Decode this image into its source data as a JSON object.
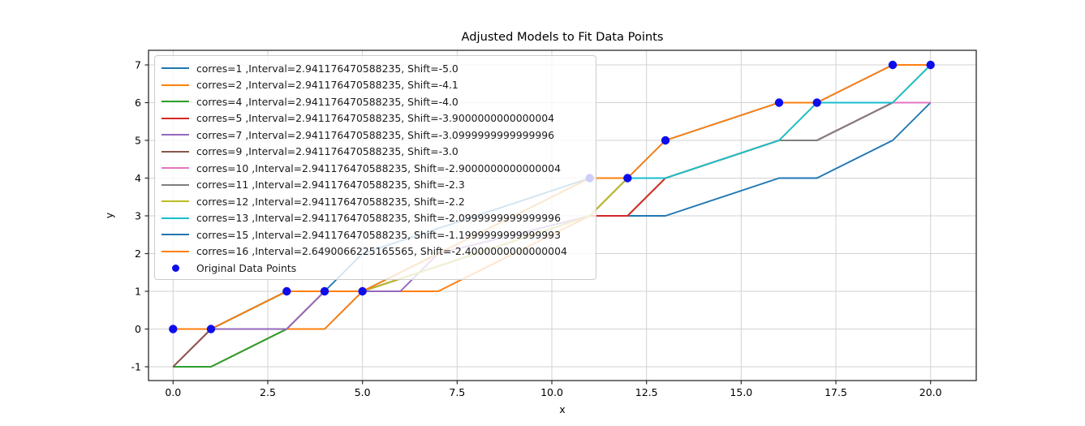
{
  "title": "Adjusted Models to Fit Data Points",
  "chart_data": {
    "type": "line",
    "title": "Adjusted Models to Fit Data Points",
    "xlabel": "x",
    "ylabel": "y",
    "xlim": [
      -0.65,
      21.2
    ],
    "ylim": [
      -1.37,
      7.4
    ],
    "grid": true,
    "legend_position": "upper left",
    "x_ticks": [
      {
        "value": 0,
        "label": "0.0"
      },
      {
        "value": 2.5,
        "label": "2.5"
      },
      {
        "value": 5,
        "label": "5.0"
      },
      {
        "value": 7.5,
        "label": "7.5"
      },
      {
        "value": 10,
        "label": "10.0"
      },
      {
        "value": 12.5,
        "label": "12.5"
      },
      {
        "value": 15,
        "label": "15.0"
      },
      {
        "value": 17.5,
        "label": "17.5"
      },
      {
        "value": 20,
        "label": "20.0"
      }
    ],
    "y_ticks": [
      {
        "value": -1,
        "label": "-1"
      },
      {
        "value": 0,
        "label": "0"
      },
      {
        "value": 1,
        "label": "1"
      },
      {
        "value": 2,
        "label": "2"
      },
      {
        "value": 3,
        "label": "3"
      },
      {
        "value": 4,
        "label": "4"
      },
      {
        "value": 5,
        "label": "5"
      },
      {
        "value": 6,
        "label": "6"
      },
      {
        "value": 7,
        "label": "7"
      }
    ],
    "series": [
      {
        "corres": "1",
        "color": "#1f77b4",
        "label": "corres=1 ,Interval=2.941176470588235, Shift=-5.0",
        "points": [
          [
            0,
            -1
          ],
          [
            1,
            -1
          ],
          [
            3,
            0
          ],
          [
            4,
            0
          ],
          [
            5,
            1
          ],
          [
            11,
            3
          ],
          [
            12,
            3
          ],
          [
            13,
            3
          ],
          [
            16,
            4
          ],
          [
            17,
            4
          ],
          [
            19,
            5
          ],
          [
            20,
            6
          ]
        ]
      },
      {
        "corres": "2",
        "color": "#ff7f0e",
        "label": "corres=2 ,Interval=2.941176470588235, Shift=-4.1",
        "points": [
          [
            0,
            -1
          ],
          [
            1,
            -1
          ],
          [
            3,
            0
          ],
          [
            4,
            0
          ],
          [
            5,
            1
          ],
          [
            7,
            1
          ],
          [
            9,
            2
          ],
          [
            11,
            3
          ],
          [
            12,
            3
          ],
          [
            13,
            4
          ],
          [
            16,
            5
          ],
          [
            17,
            5
          ],
          [
            19,
            6
          ],
          [
            20,
            6
          ]
        ]
      },
      {
        "corres": "4",
        "color": "#2ca02c",
        "label": "corres=4 ,Interval=2.941176470588235, Shift=-4.0",
        "points": [
          [
            0,
            -1
          ],
          [
            1,
            -1
          ],
          [
            3,
            0
          ],
          [
            4,
            1
          ],
          [
            5,
            1
          ],
          [
            11,
            3
          ],
          [
            12,
            3
          ],
          [
            13,
            4
          ],
          [
            16,
            5
          ],
          [
            17,
            5
          ],
          [
            19,
            6
          ],
          [
            20,
            6
          ]
        ]
      },
      {
        "corres": "5",
        "color": "#d62728",
        "label": "corres=5 ,Interval=2.941176470588235, Shift=-3.9000000000000004",
        "points": [
          [
            0,
            -1
          ],
          [
            1,
            0
          ],
          [
            3,
            0
          ],
          [
            4,
            1
          ],
          [
            5,
            1
          ],
          [
            11,
            3
          ],
          [
            12,
            3
          ],
          [
            13,
            4
          ],
          [
            16,
            5
          ],
          [
            17,
            5
          ],
          [
            19,
            6
          ],
          [
            20,
            6
          ]
        ]
      },
      {
        "corres": "7",
        "color": "#9467bd",
        "label": "corres=7 ,Interval=2.941176470588235, Shift=-3.0999999999999996",
        "points": [
          [
            0,
            -1
          ],
          [
            1,
            0
          ],
          [
            3,
            0
          ],
          [
            4,
            1
          ],
          [
            5,
            1
          ],
          [
            6,
            1
          ],
          [
            7,
            2
          ],
          [
            11,
            3
          ],
          [
            12,
            4
          ],
          [
            13,
            4
          ],
          [
            16,
            5
          ],
          [
            17,
            5
          ],
          [
            19,
            6
          ],
          [
            20,
            6
          ]
        ]
      },
      {
        "corres": "9",
        "color": "#8c564b",
        "label": "corres=9 ,Interval=2.941176470588235, Shift=-3.0",
        "points": [
          [
            0,
            -1
          ],
          [
            1,
            0
          ],
          [
            3,
            1
          ],
          [
            4,
            1
          ],
          [
            5,
            1
          ],
          [
            11,
            3
          ],
          [
            12,
            4
          ],
          [
            13,
            4
          ],
          [
            16,
            5
          ],
          [
            17,
            5
          ],
          [
            19,
            6
          ],
          [
            20,
            6
          ]
        ]
      },
      {
        "corres": "10",
        "color": "#e377c2",
        "label": "corres=10 ,Interval=2.941176470588235, Shift=-2.9000000000000004",
        "points": [
          [
            0,
            0
          ],
          [
            1,
            0
          ],
          [
            3,
            1
          ],
          [
            4,
            1
          ],
          [
            5,
            1
          ],
          [
            11,
            3
          ],
          [
            12,
            4
          ],
          [
            13,
            4
          ],
          [
            16,
            5
          ],
          [
            17,
            5
          ],
          [
            19,
            6
          ],
          [
            20,
            6
          ]
        ]
      },
      {
        "corres": "11",
        "color": "#7f7f7f",
        "label": "corres=11 ,Interval=2.941176470588235, Shift=-2.3",
        "points": [
          [
            0,
            0
          ],
          [
            1,
            0
          ],
          [
            3,
            1
          ],
          [
            4,
            1
          ],
          [
            5,
            1
          ],
          [
            11,
            3
          ],
          [
            12,
            4
          ],
          [
            13,
            4
          ],
          [
            16,
            5
          ],
          [
            17,
            5
          ],
          [
            19,
            6
          ],
          [
            20,
            7
          ]
        ]
      },
      {
        "corres": "12",
        "color": "#bcbd22",
        "label": "corres=12 ,Interval=2.941176470588235, Shift=-2.2",
        "points": [
          [
            0,
            0
          ],
          [
            1,
            0
          ],
          [
            3,
            1
          ],
          [
            4,
            1
          ],
          [
            5,
            1
          ],
          [
            11,
            3
          ],
          [
            12,
            4
          ],
          [
            13,
            4
          ],
          [
            16,
            5
          ],
          [
            17,
            6
          ],
          [
            19,
            6
          ],
          [
            20,
            7
          ]
        ]
      },
      {
        "corres": "13",
        "color": "#17becf",
        "label": "corres=13 ,Interval=2.941176470588235, Shift=-2.0999999999999996",
        "points": [
          [
            0,
            0
          ],
          [
            1,
            0
          ],
          [
            3,
            1
          ],
          [
            4,
            1
          ],
          [
            5,
            1
          ],
          [
            11,
            4
          ],
          [
            12,
            4
          ],
          [
            13,
            4
          ],
          [
            16,
            5
          ],
          [
            17,
            6
          ],
          [
            19,
            6
          ],
          [
            20,
            7
          ]
        ]
      },
      {
        "corres": "15",
        "color": "#1f77b4",
        "label": "corres=15 ,Interval=2.941176470588235, Shift=-1.1999999999999993",
        "points": [
          [
            0,
            0
          ],
          [
            1,
            0
          ],
          [
            3,
            1
          ],
          [
            4,
            1
          ],
          [
            5,
            2
          ],
          [
            11,
            4
          ],
          [
            12,
            4
          ],
          [
            13,
            5
          ],
          [
            16,
            6
          ],
          [
            17,
            6
          ],
          [
            19,
            7
          ],
          [
            20,
            7
          ]
        ]
      },
      {
        "corres": "16",
        "color": "#ff7f0e",
        "label": "corres=16 ,Interval=2.6490066225165565, Shift=-2.4000000000000004",
        "points": [
          [
            0,
            0
          ],
          [
            1,
            0
          ],
          [
            3,
            1
          ],
          [
            4,
            1
          ],
          [
            5,
            1
          ],
          [
            11,
            4
          ],
          [
            12,
            4
          ],
          [
            13,
            5
          ],
          [
            16,
            6
          ],
          [
            17,
            6
          ],
          [
            19,
            7
          ],
          [
            20,
            7
          ]
        ]
      }
    ],
    "original_points": {
      "label": "Original Data Points",
      "color": "#0d0dec",
      "points": [
        [
          0,
          0
        ],
        [
          1,
          0
        ],
        [
          3,
          1
        ],
        [
          4,
          1
        ],
        [
          5,
          1
        ],
        [
          11,
          4
        ],
        [
          12,
          4
        ],
        [
          13,
          5
        ],
        [
          16,
          6
        ],
        [
          17,
          6
        ],
        [
          19,
          7
        ],
        [
          20,
          7
        ]
      ]
    },
    "colors": {
      "grid": "#d2d2d2",
      "spine": "#2b2b2b",
      "tick_label": "#000000"
    }
  }
}
